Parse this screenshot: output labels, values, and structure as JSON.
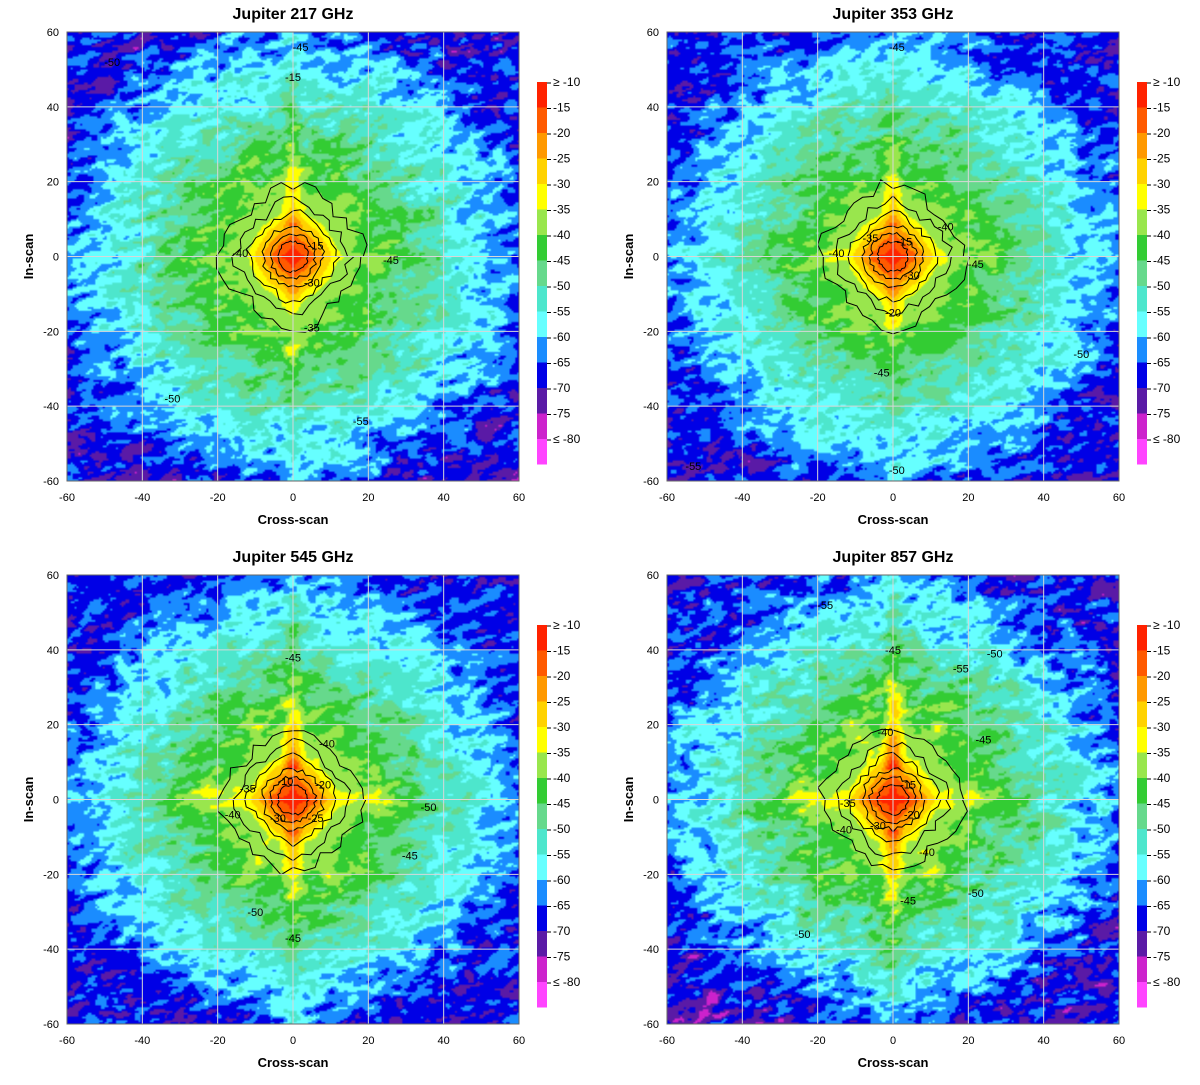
{
  "chart_data": [
    {
      "type": "heatmap",
      "title": "Jupiter 217 GHz",
      "xlabel": "Cross-scan",
      "ylabel": "In-scan",
      "xlim": [
        -60,
        60
      ],
      "ylim": [
        -60,
        60
      ],
      "xticks": [
        "-60",
        "-40",
        "-20",
        "0",
        "20",
        "40",
        "60"
      ],
      "yticks": [
        "60",
        "40",
        "20",
        "0",
        "-20",
        "-40",
        "-60"
      ],
      "grid": true,
      "legend": "right",
      "levels": [
        {
          "label": "≥ -10",
          "color": "#ff2200"
        },
        {
          "label": "-15",
          "color": "#ff5a00"
        },
        {
          "label": "-20",
          "color": "#ff9900"
        },
        {
          "label": "-25",
          "color": "#ffd200"
        },
        {
          "label": "-30",
          "color": "#ffff00"
        },
        {
          "label": "-35",
          "color": "#99e64d"
        },
        {
          "label": "-40",
          "color": "#33cc33"
        },
        {
          "label": "-45",
          "color": "#66d98c"
        },
        {
          "label": "-50",
          "color": "#4de6cc"
        },
        {
          "label": "-55",
          "color": "#66ffff"
        },
        {
          "label": "-60",
          "color": "#1a8cff"
        },
        {
          "label": "-65",
          "color": "#0000e6"
        },
        {
          "label": "-70",
          "color": "#5a1aa6"
        },
        {
          "label": "-75",
          "color": "#cc22cc"
        },
        {
          "label": "≤ -80",
          "color": "#ff44ff"
        }
      ],
      "contour_labels": [
        {
          "text": "-45",
          "x": 2,
          "y": 56
        },
        {
          "text": "-15",
          "x": 0,
          "y": 48
        },
        {
          "text": "-50",
          "x": -48,
          "y": 52
        },
        {
          "text": "-15",
          "x": 6,
          "y": 3
        },
        {
          "text": "-40",
          "x": -14,
          "y": 1
        },
        {
          "text": "-30",
          "x": 5,
          "y": -7
        },
        {
          "text": "-45",
          "x": 26,
          "y": -1
        },
        {
          "text": "-35",
          "x": 5,
          "y": -19
        },
        {
          "text": "-50",
          "x": -32,
          "y": -38
        },
        {
          "text": "-55",
          "x": 18,
          "y": -44
        }
      ]
    },
    {
      "type": "heatmap",
      "title": "Jupiter 353 GHz",
      "xlabel": "Cross-scan",
      "ylabel": "In-scan",
      "xlim": [
        -60,
        60
      ],
      "ylim": [
        -60,
        60
      ],
      "xticks": [
        "-60",
        "-40",
        "-20",
        "0",
        "20",
        "40",
        "60"
      ],
      "yticks": [
        "60",
        "40",
        "20",
        "0",
        "-20",
        "-40",
        "-60"
      ],
      "grid": true,
      "legend": "right",
      "levels": [
        {
          "label": "≥ -10",
          "color": "#ff2200"
        },
        {
          "label": "-15",
          "color": "#ff5a00"
        },
        {
          "label": "-20",
          "color": "#ff9900"
        },
        {
          "label": "-25",
          "color": "#ffd200"
        },
        {
          "label": "-30",
          "color": "#ffff00"
        },
        {
          "label": "-35",
          "color": "#99e64d"
        },
        {
          "label": "-40",
          "color": "#33cc33"
        },
        {
          "label": "-45",
          "color": "#66d98c"
        },
        {
          "label": "-50",
          "color": "#4de6cc"
        },
        {
          "label": "-55",
          "color": "#66ffff"
        },
        {
          "label": "-60",
          "color": "#1a8cff"
        },
        {
          "label": "-65",
          "color": "#0000e6"
        },
        {
          "label": "-70",
          "color": "#5a1aa6"
        },
        {
          "label": "-75",
          "color": "#cc22cc"
        },
        {
          "label": "≤ -80",
          "color": "#ff44ff"
        }
      ],
      "contour_labels": [
        {
          "text": "-45",
          "x": 1,
          "y": 56
        },
        {
          "text": "-40",
          "x": 14,
          "y": 8
        },
        {
          "text": "-35",
          "x": -6,
          "y": 5
        },
        {
          "text": "-40",
          "x": -15,
          "y": 1
        },
        {
          "text": "-15",
          "x": 3,
          "y": 4
        },
        {
          "text": "-45",
          "x": 22,
          "y": -2
        },
        {
          "text": "-30",
          "x": 5,
          "y": -5
        },
        {
          "text": "-20",
          "x": 0,
          "y": -15
        },
        {
          "text": "-45",
          "x": -3,
          "y": -31
        },
        {
          "text": "-50",
          "x": 50,
          "y": -26
        },
        {
          "text": "-55",
          "x": -53,
          "y": -56
        },
        {
          "text": "-50",
          "x": 1,
          "y": -57
        }
      ]
    },
    {
      "type": "heatmap",
      "title": "Jupiter 545 GHz",
      "xlabel": "Cross-scan",
      "ylabel": "In-scan",
      "xlim": [
        -60,
        60
      ],
      "ylim": [
        -60,
        60
      ],
      "xticks": [
        "-60",
        "-40",
        "-20",
        "0",
        "20",
        "40",
        "60"
      ],
      "yticks": [
        "60",
        "40",
        "20",
        "0",
        "-20",
        "-40",
        "-60"
      ],
      "grid": true,
      "legend": "right",
      "levels": [
        {
          "label": "≥ -10",
          "color": "#ff2200"
        },
        {
          "label": "-15",
          "color": "#ff5a00"
        },
        {
          "label": "-20",
          "color": "#ff9900"
        },
        {
          "label": "-25",
          "color": "#ffd200"
        },
        {
          "label": "-30",
          "color": "#ffff00"
        },
        {
          "label": "-35",
          "color": "#99e64d"
        },
        {
          "label": "-40",
          "color": "#33cc33"
        },
        {
          "label": "-45",
          "color": "#66d98c"
        },
        {
          "label": "-50",
          "color": "#4de6cc"
        },
        {
          "label": "-55",
          "color": "#66ffff"
        },
        {
          "label": "-60",
          "color": "#1a8cff"
        },
        {
          "label": "-65",
          "color": "#0000e6"
        },
        {
          "label": "-70",
          "color": "#5a1aa6"
        },
        {
          "label": "-75",
          "color": "#cc22cc"
        },
        {
          "label": "≤ -80",
          "color": "#ff44ff"
        }
      ],
      "contour_labels": [
        {
          "text": "-45",
          "x": 0,
          "y": 38
        },
        {
          "text": "-40",
          "x": 9,
          "y": 15
        },
        {
          "text": "-35",
          "x": -12,
          "y": 3
        },
        {
          "text": "-10",
          "x": -2,
          "y": 5
        },
        {
          "text": "-20",
          "x": 8,
          "y": 4
        },
        {
          "text": "-40",
          "x": -16,
          "y": -4
        },
        {
          "text": "-30",
          "x": -4,
          "y": -5
        },
        {
          "text": "-25",
          "x": 6,
          "y": -5
        },
        {
          "text": "-50",
          "x": 36,
          "y": -2
        },
        {
          "text": "-45",
          "x": 31,
          "y": -15
        },
        {
          "text": "-50",
          "x": -10,
          "y": -30
        },
        {
          "text": "-45",
          "x": 0,
          "y": -37
        }
      ]
    },
    {
      "type": "heatmap",
      "title": "Jupiter 857 GHz",
      "xlabel": "Cross-scan",
      "ylabel": "In-scan",
      "xlim": [
        -60,
        60
      ],
      "ylim": [
        -60,
        60
      ],
      "xticks": [
        "-60",
        "-40",
        "-20",
        "0",
        "20",
        "40",
        "60"
      ],
      "yticks": [
        "60",
        "40",
        "20",
        "0",
        "-20",
        "-40",
        "-60"
      ],
      "grid": true,
      "legend": "right",
      "levels": [
        {
          "label": "≥ -10",
          "color": "#ff2200"
        },
        {
          "label": "-15",
          "color": "#ff5a00"
        },
        {
          "label": "-20",
          "color": "#ff9900"
        },
        {
          "label": "-25",
          "color": "#ffd200"
        },
        {
          "label": "-30",
          "color": "#ffff00"
        },
        {
          "label": "-35",
          "color": "#99e64d"
        },
        {
          "label": "-40",
          "color": "#33cc33"
        },
        {
          "label": "-45",
          "color": "#66d98c"
        },
        {
          "label": "-50",
          "color": "#4de6cc"
        },
        {
          "label": "-55",
          "color": "#66ffff"
        },
        {
          "label": "-60",
          "color": "#1a8cff"
        },
        {
          "label": "-65",
          "color": "#0000e6"
        },
        {
          "label": "-70",
          "color": "#5a1aa6"
        },
        {
          "label": "-75",
          "color": "#cc22cc"
        },
        {
          "label": "≤ -80",
          "color": "#ff44ff"
        }
      ],
      "contour_labels": [
        {
          "text": "-45",
          "x": 0,
          "y": 40
        },
        {
          "text": "-55",
          "x": -18,
          "y": 52
        },
        {
          "text": "-50",
          "x": 27,
          "y": 39
        },
        {
          "text": "-55",
          "x": 18,
          "y": 35
        },
        {
          "text": "-40",
          "x": -2,
          "y": 18
        },
        {
          "text": "-45",
          "x": 24,
          "y": 16
        },
        {
          "text": "-15",
          "x": 4,
          "y": 4
        },
        {
          "text": "-35",
          "x": -12,
          "y": -1
        },
        {
          "text": "-30",
          "x": -4,
          "y": -7
        },
        {
          "text": "-20",
          "x": 5,
          "y": -4
        },
        {
          "text": "-40",
          "x": -13,
          "y": -8
        },
        {
          "text": "-40",
          "x": 9,
          "y": -14
        },
        {
          "text": "-50",
          "x": 22,
          "y": -25
        },
        {
          "text": "-50",
          "x": -24,
          "y": -36
        },
        {
          "text": "-45",
          "x": 4,
          "y": -27
        }
      ]
    }
  ]
}
